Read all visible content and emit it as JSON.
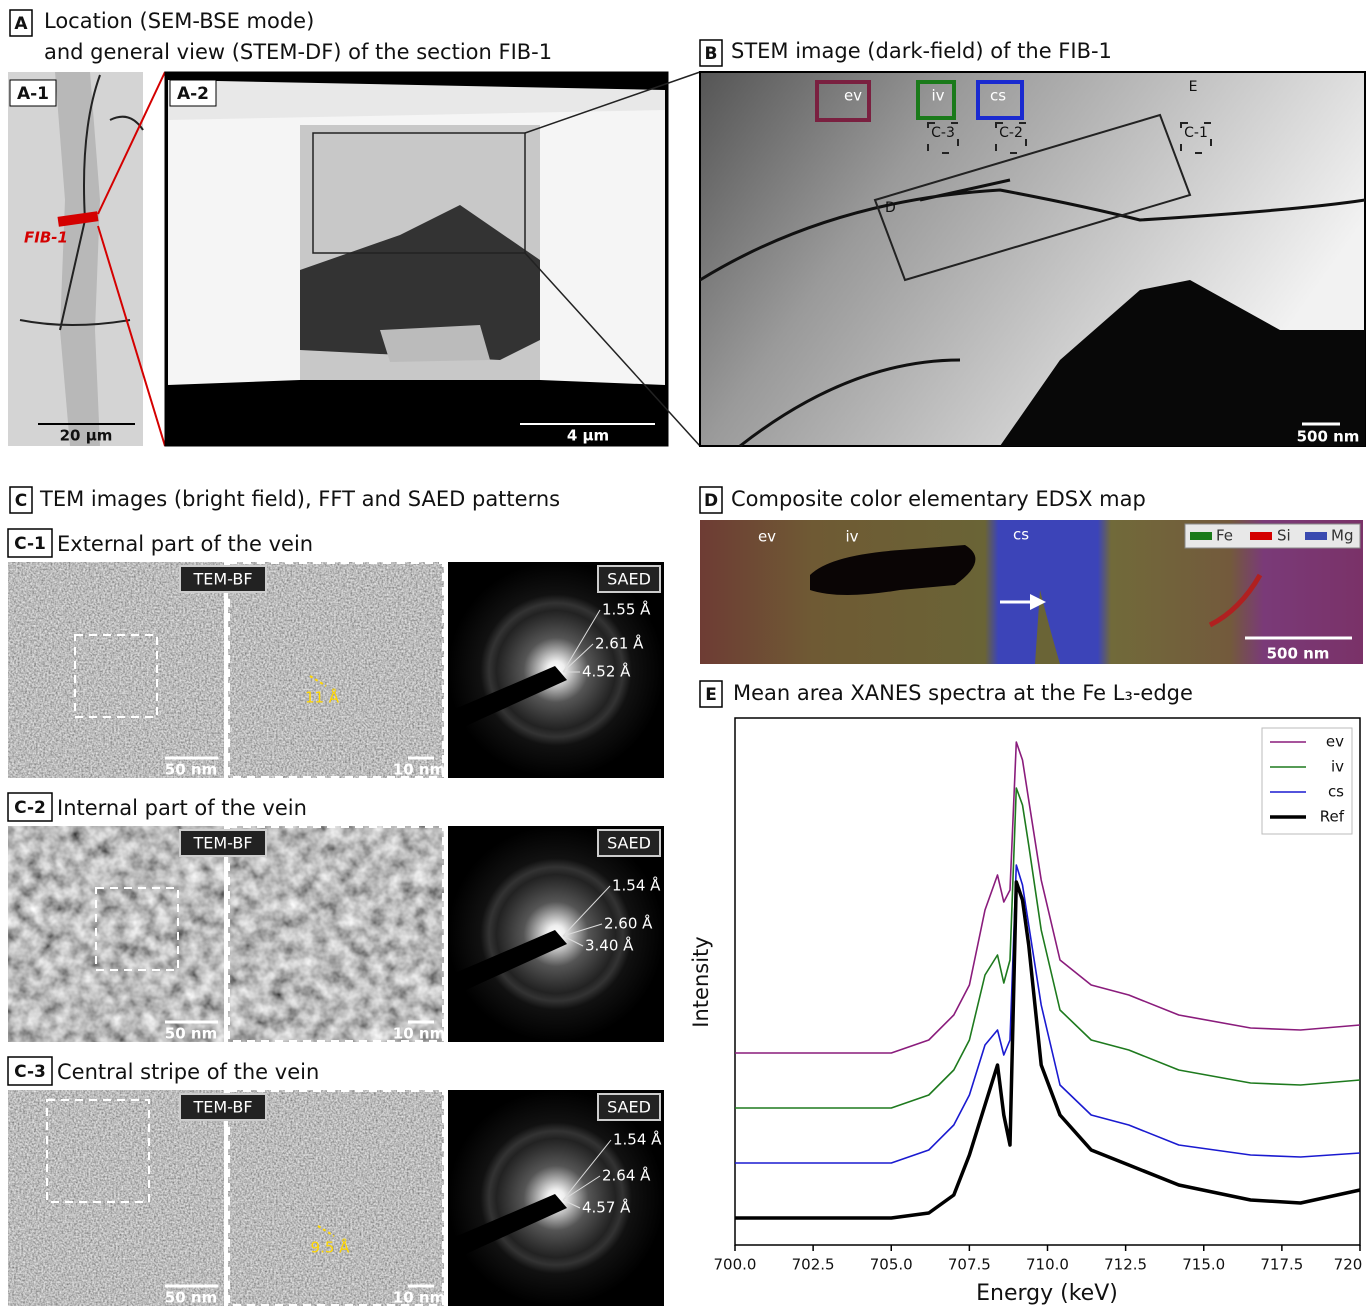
{
  "panels": {
    "A": {
      "letter": "A",
      "title": "Location (SEM-BSE mode)",
      "title2": "and general view (STEM-DF) of the section FIB-1",
      "a1": {
        "label": "A-1",
        "fib": "FIB-1",
        "scale": "20 µm"
      },
      "a2": {
        "label": "A-2",
        "scale": "4 µm"
      }
    },
    "B": {
      "letter": "B",
      "title": "STEM image (dark-field) of the FIB-1",
      "boxes": [
        "ev",
        "iv",
        "cs"
      ],
      "regions": [
        "C-3",
        "C-2",
        "C-1"
      ],
      "d": "D",
      "e": "E",
      "scale": "500 nm"
    },
    "C": {
      "letter": "C",
      "title": "TEM images (bright field), FFT and SAED patterns",
      "rows": [
        {
          "label": "C-1",
          "title": "External part of the vein",
          "bf": "TEM-BF",
          "saed": "SAED",
          "scale1": "50 nm",
          "scale2": "10 nm",
          "fringe": "11 Å",
          "d": [
            "1.55 Å",
            "2.61 Å",
            "4.52 Å"
          ]
        },
        {
          "label": "C-2",
          "title": "Internal part of the vein",
          "bf": "TEM-BF",
          "saed": "SAED",
          "scale1": "50 nm",
          "scale2": "10 nm",
          "d": [
            "1.54 Å",
            "2.60 Å",
            "3.40 Å"
          ]
        },
        {
          "label": "C-3",
          "title": "Central stripe of the vein",
          "bf": "TEM-BF",
          "saed": "SAED",
          "scale1": "50 nm",
          "scale2": "10 nm",
          "fringe": "9.5 Å",
          "d": [
            "1.54 Å",
            "2.64 Å",
            "4.57 Å"
          ]
        }
      ]
    },
    "D": {
      "letter": "D",
      "title": "Composite color elementary EDSX map",
      "labels": [
        "ev",
        "iv",
        "cs"
      ],
      "legend": [
        "Fe",
        "Si",
        "Mg"
      ],
      "scale": "500 nm"
    },
    "E": {
      "letter": "E"
    }
  },
  "chart_data": {
    "type": "line",
    "title": "Mean area XANES spectra at the Fe L₃-edge",
    "x_label": "Energy (keV)",
    "y_label": "Intensity",
    "x": [
      700,
      705,
      706.2,
      707,
      707.5,
      708,
      708.4,
      708.6,
      708.8,
      709,
      709.2,
      709.4,
      709.8,
      710.4,
      711.4,
      712.6,
      714.2,
      716.5,
      718.1,
      720
    ],
    "series": [
      {
        "name": "ev",
        "color": "#8a1c7c",
        "values": [
          192,
          192,
          205,
          230,
          260,
          335,
          370,
          343,
          355,
          503,
          485,
          445,
          365,
          285,
          260,
          250,
          230,
          217,
          215,
          220
        ]
      },
      {
        "name": "iv",
        "color": "#1e7a1e",
        "values": [
          137,
          137,
          150,
          175,
          205,
          270,
          290,
          262,
          285,
          457,
          440,
          400,
          315,
          235,
          205,
          195,
          175,
          162,
          160,
          165
        ]
      },
      {
        "name": "cs",
        "color": "#1a1ad0",
        "values": [
          82,
          82,
          95,
          120,
          150,
          200,
          215,
          190,
          205,
          380,
          360,
          320,
          240,
          160,
          130,
          120,
          100,
          90,
          88,
          92
        ]
      },
      {
        "name": "Ref",
        "color": "#000000",
        "values": [
          27,
          27,
          32,
          50,
          90,
          140,
          180,
          130,
          100,
          363,
          345,
          300,
          180,
          130,
          95,
          80,
          60,
          45,
          42,
          55
        ]
      }
    ],
    "xlim": [
      700,
      720
    ],
    "ylim": [
      0,
      527
    ],
    "xticks": [
      {
        "value": 700,
        "label": "700.0"
      },
      702.5,
      {
        "value": 705,
        "label": "705.0"
      },
      707.5,
      {
        "value": 710,
        "label": "710.0"
      },
      712.5,
      {
        "value": 715,
        "label": "715.0"
      },
      717.5,
      720
    ],
    "legend": "upper right"
  }
}
